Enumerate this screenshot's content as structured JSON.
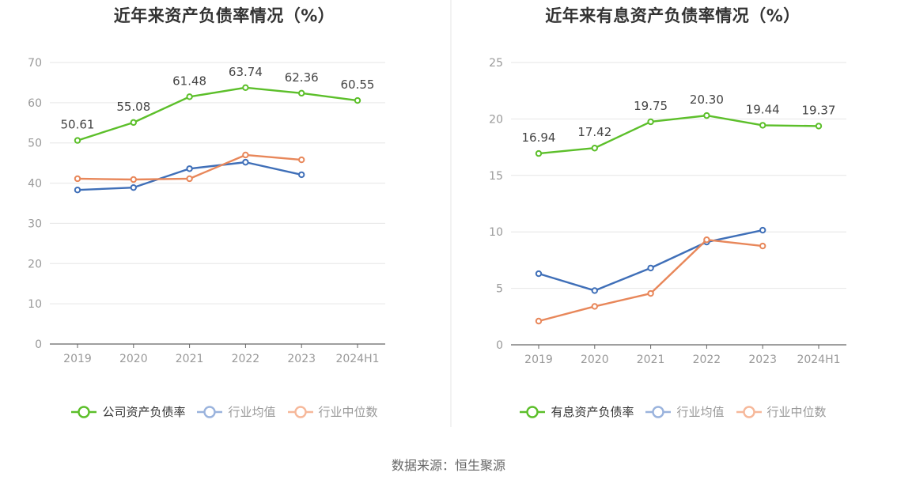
{
  "colors": {
    "company": "#5cbf2a",
    "mean": "#3f6fb8",
    "median": "#e8875a",
    "mean_legend": "#9ab3dd",
    "median_legend": "#f6b89a",
    "grid": "#e6e6e6",
    "axis": "#666666",
    "tick_text": "#999999",
    "label_text": "#444444"
  },
  "source": "数据来源：恒生聚源",
  "chart_data": [
    {
      "type": "line",
      "title": "近年来资产负债率情况（%）",
      "categories": [
        "2019",
        "2020",
        "2021",
        "2022",
        "2023",
        "2024H1"
      ],
      "ylim": [
        0,
        70
      ],
      "yticks": [
        "0",
        "10",
        "20",
        "30",
        "40",
        "50",
        "60",
        "70"
      ],
      "ytick_values": [
        0,
        10,
        20,
        30,
        40,
        50,
        60,
        70
      ],
      "grid": true,
      "legend_position": "bottom",
      "series": [
        {
          "name": "公司资产负债率",
          "color_key": "company",
          "legend_color_key": "company",
          "legend_active": true,
          "values": [
            50.61,
            55.08,
            61.48,
            63.74,
            62.36,
            60.55
          ],
          "labels": [
            "50.61",
            "55.08",
            "61.48",
            "63.74",
            "62.36",
            "60.55"
          ]
        },
        {
          "name": "行业均值",
          "color_key": "mean",
          "legend_color_key": "mean_legend",
          "legend_active": false,
          "values": [
            38.3,
            38.9,
            43.6,
            45.2,
            42.1,
            null
          ]
        },
        {
          "name": "行业中位数",
          "color_key": "median",
          "legend_color_key": "median_legend",
          "legend_active": false,
          "values": [
            41.1,
            40.9,
            41.1,
            47.0,
            45.8,
            null
          ]
        }
      ]
    },
    {
      "type": "line",
      "title": "近年来有息资产负债率情况（%）",
      "categories": [
        "2019",
        "2020",
        "2021",
        "2022",
        "2023",
        "2024H1"
      ],
      "ylim": [
        0,
        25
      ],
      "yticks": [
        "0",
        "5",
        "10",
        "15",
        "20",
        "25"
      ],
      "ytick_values": [
        0,
        5,
        10,
        15,
        20,
        25
      ],
      "grid": true,
      "legend_position": "bottom",
      "series": [
        {
          "name": "有息资产负债率",
          "color_key": "company",
          "legend_color_key": "company",
          "legend_active": true,
          "values": [
            16.94,
            17.42,
            19.75,
            20.3,
            19.44,
            19.37
          ],
          "labels": [
            "16.94",
            "17.42",
            "19.75",
            "20.30",
            "19.44",
            "19.37"
          ]
        },
        {
          "name": "行业均值",
          "color_key": "mean",
          "legend_color_key": "mean_legend",
          "legend_active": false,
          "values": [
            6.3,
            4.8,
            6.8,
            9.1,
            10.15,
            null
          ]
        },
        {
          "name": "行业中位数",
          "color_key": "median",
          "legend_color_key": "median_legend",
          "legend_active": false,
          "values": [
            2.1,
            3.4,
            4.55,
            9.3,
            8.75,
            null
          ]
        }
      ]
    }
  ]
}
